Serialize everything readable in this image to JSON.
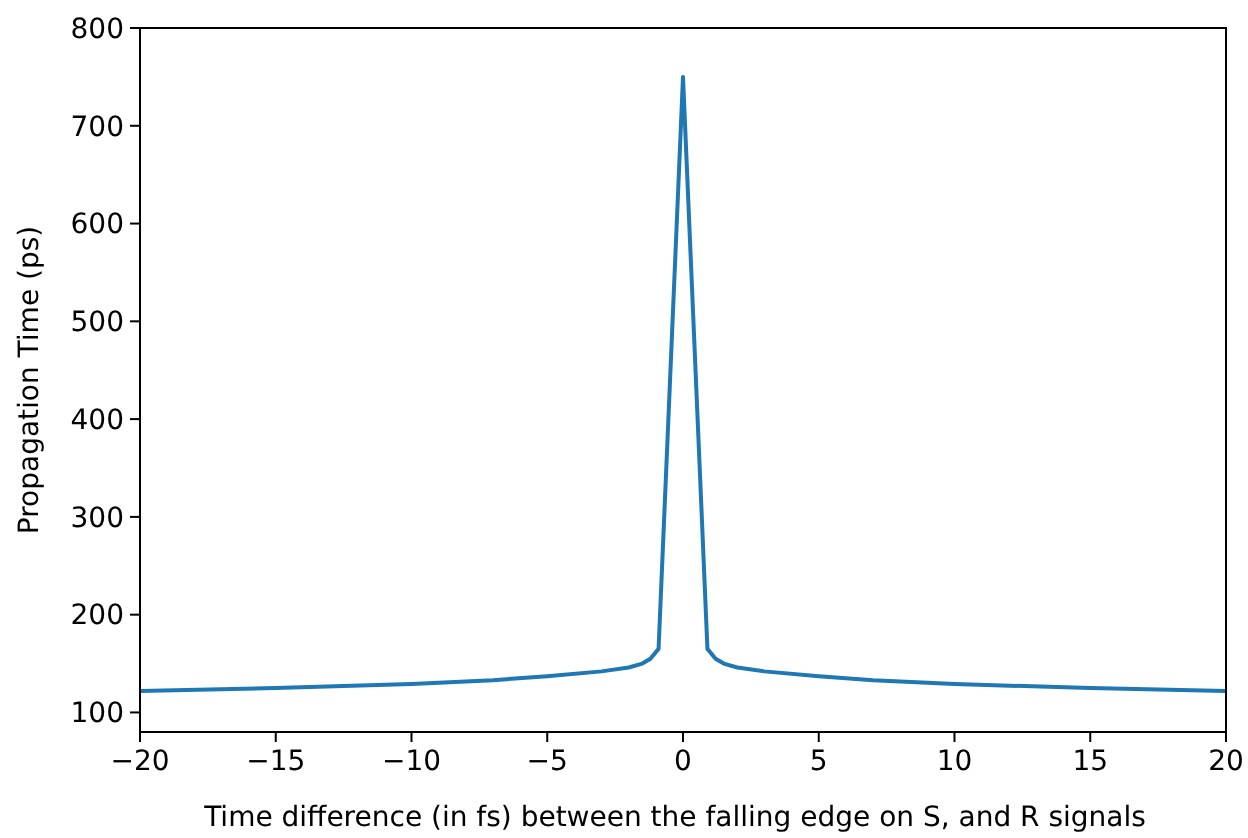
{
  "chart_data": {
    "type": "line",
    "xlabel": "Time difference (in fs) between the falling edge on S, and R signals",
    "ylabel": "Propagation Time (ps)",
    "x": [
      -20,
      -15,
      -10,
      -7,
      -5,
      -3,
      -2,
      -1.5,
      -1.2,
      -0.9,
      0,
      0.9,
      1.2,
      1.5,
      2,
      3,
      5,
      7,
      10,
      15,
      20
    ],
    "series": [
      {
        "color": "#1f77b4",
        "values": [
          122,
          125,
          129,
          133,
          137,
          142,
          146,
          150,
          155,
          165,
          750,
          165,
          155,
          150,
          146,
          142,
          137,
          133,
          129,
          125,
          122
        ]
      }
    ],
    "xlim": [
      -20,
      20
    ],
    "xticks": [
      {
        "value": -20,
        "label": "−20"
      },
      {
        "value": -15,
        "label": "−15"
      },
      {
        "value": -10,
        "label": "−10"
      },
      {
        "value": -5,
        "label": "−5"
      },
      0,
      5,
      10,
      15,
      20
    ],
    "ylim": [
      80,
      800
    ],
    "yticks": [
      100,
      200,
      300,
      400,
      500,
      600,
      700,
      800
    ],
    "marker": "none",
    "line_style": "solid",
    "grid": false
  }
}
